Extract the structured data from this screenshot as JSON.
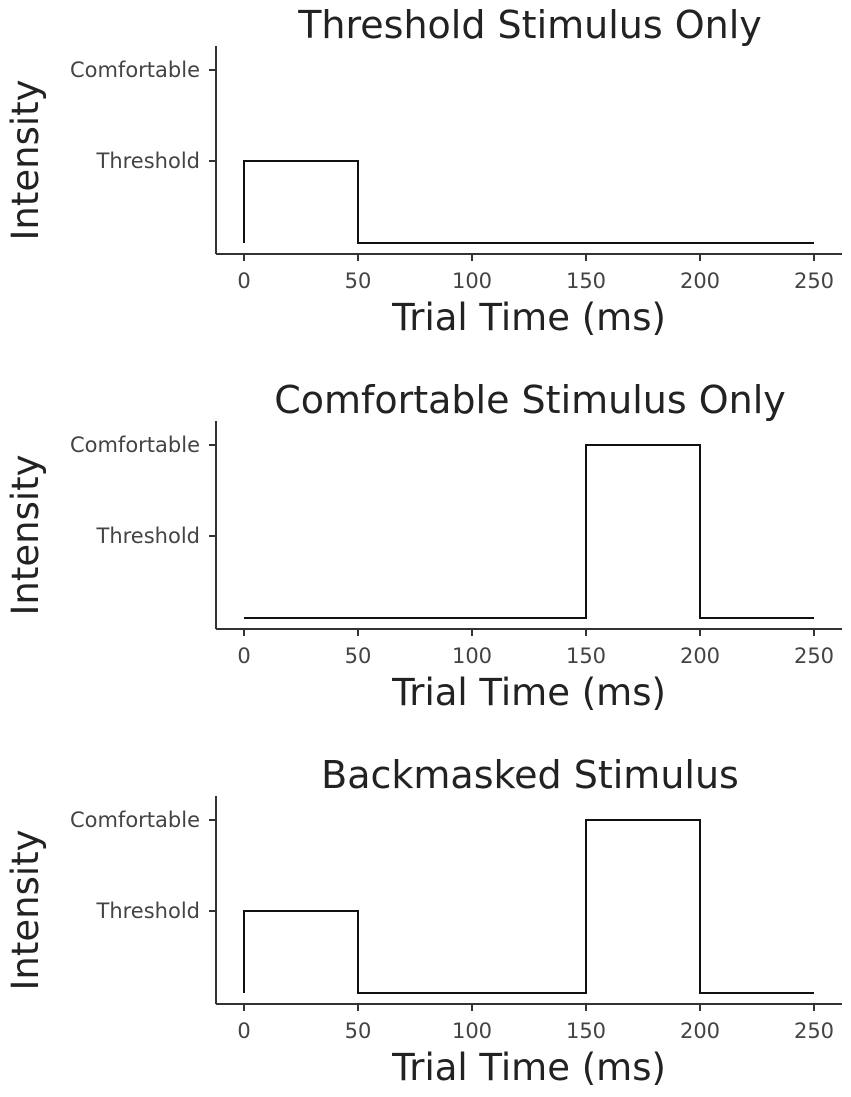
{
  "chart_data": [
    {
      "type": "line",
      "title": "Threshold Stimulus Only",
      "xlabel": "Trial Time (ms)",
      "ylabel": "Intensity",
      "xlim": [
        0,
        250
      ],
      "xticks": [
        0,
        50,
        100,
        150,
        200,
        250
      ],
      "ytick_labels": [
        "Threshold",
        "Comfortable"
      ],
      "y_levels": {
        "baseline": 0,
        "Threshold": 1,
        "Comfortable": 2
      },
      "grid": false,
      "series": [
        {
          "x": [
            0,
            0,
            50,
            50,
            250
          ],
          "y": [
            0,
            1,
            1,
            0,
            0
          ]
        }
      ]
    },
    {
      "type": "line",
      "title": "Comfortable Stimulus Only",
      "xlabel": "Trial Time (ms)",
      "ylabel": "Intensity",
      "xlim": [
        0,
        250
      ],
      "xticks": [
        0,
        50,
        100,
        150,
        200,
        250
      ],
      "ytick_labels": [
        "Threshold",
        "Comfortable"
      ],
      "y_levels": {
        "baseline": 0,
        "Threshold": 1,
        "Comfortable": 2
      },
      "grid": false,
      "series": [
        {
          "x": [
            0,
            150,
            150,
            200,
            200,
            250
          ],
          "y": [
            0,
            0,
            2,
            2,
            0,
            0
          ]
        }
      ]
    },
    {
      "type": "line",
      "title": "Backmasked Stimulus",
      "xlabel": "Trial Time (ms)",
      "ylabel": "Intensity",
      "xlim": [
        0,
        250
      ],
      "xticks": [
        0,
        50,
        100,
        150,
        200,
        250
      ],
      "ytick_labels": [
        "Threshold",
        "Comfortable"
      ],
      "y_levels": {
        "baseline": 0,
        "Threshold": 1,
        "Comfortable": 2
      },
      "grid": false,
      "series": [
        {
          "x": [
            0,
            0,
            50,
            50,
            150,
            150,
            200,
            200,
            250
          ],
          "y": [
            0,
            1,
            1,
            0,
            0,
            2,
            2,
            0,
            0
          ]
        }
      ]
    }
  ]
}
